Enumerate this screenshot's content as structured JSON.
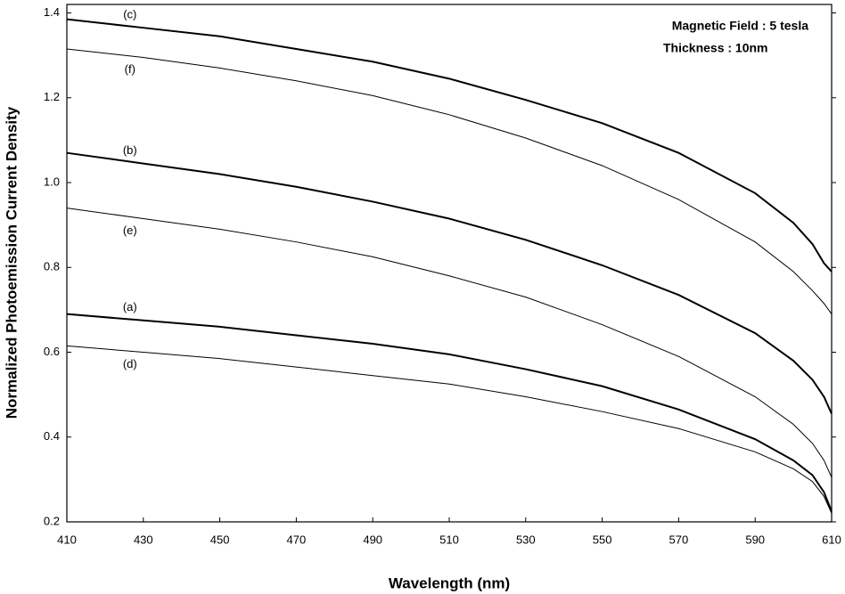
{
  "chart_data": {
    "type": "line",
    "xlabel": "Wavelength (nm)",
    "ylabel": "Normalized Photoemission Current Density",
    "annotations": [
      "Magnetic Field : 5 tesla",
      "Thickness : 10nm"
    ],
    "x": [
      410,
      430,
      450,
      470,
      490,
      510,
      530,
      550,
      570,
      590,
      600,
      605,
      608,
      610
    ],
    "series": [
      {
        "name": "(a)",
        "color": "#000000",
        "line_width": 2,
        "values": [
          0.69,
          0.675,
          0.66,
          0.64,
          0.62,
          0.595,
          0.56,
          0.52,
          0.465,
          0.395,
          0.345,
          0.31,
          0.27,
          0.225
        ]
      },
      {
        "name": "(b)",
        "color": "#000000",
        "line_width": 2,
        "values": [
          1.07,
          1.045,
          1.02,
          0.99,
          0.955,
          0.915,
          0.865,
          0.805,
          0.735,
          0.645,
          0.58,
          0.535,
          0.495,
          0.455
        ]
      },
      {
        "name": "(c)",
        "color": "#000000",
        "line_width": 2,
        "values": [
          1.385,
          1.365,
          1.345,
          1.315,
          1.285,
          1.245,
          1.195,
          1.14,
          1.07,
          0.975,
          0.905,
          0.855,
          0.81,
          0.79
        ]
      },
      {
        "name": "(d)",
        "color": "#000000",
        "line_width": 1,
        "values": [
          0.615,
          0.6,
          0.585,
          0.565,
          0.545,
          0.525,
          0.495,
          0.46,
          0.42,
          0.365,
          0.325,
          0.295,
          0.26,
          0.22
        ]
      },
      {
        "name": "(e)",
        "color": "#000000",
        "line_width": 1,
        "values": [
          0.94,
          0.915,
          0.89,
          0.86,
          0.825,
          0.78,
          0.73,
          0.665,
          0.59,
          0.495,
          0.43,
          0.385,
          0.345,
          0.305
        ]
      },
      {
        "name": "(f)",
        "color": "#000000",
        "line_width": 1,
        "values": [
          1.315,
          1.295,
          1.27,
          1.24,
          1.205,
          1.16,
          1.105,
          1.04,
          0.96,
          0.86,
          0.79,
          0.745,
          0.715,
          0.69
        ]
      }
    ],
    "xlim": [
      410,
      610
    ],
    "xticks": [
      410,
      430,
      450,
      470,
      490,
      510,
      530,
      550,
      570,
      590,
      610
    ],
    "ylim": [
      0.2,
      1.42
    ],
    "yticks": [
      0.2,
      0.4,
      0.6,
      0.8,
      {
        "value": 1,
        "label": "1.0"
      },
      1.2,
      1.4
    ],
    "grid": false
  }
}
